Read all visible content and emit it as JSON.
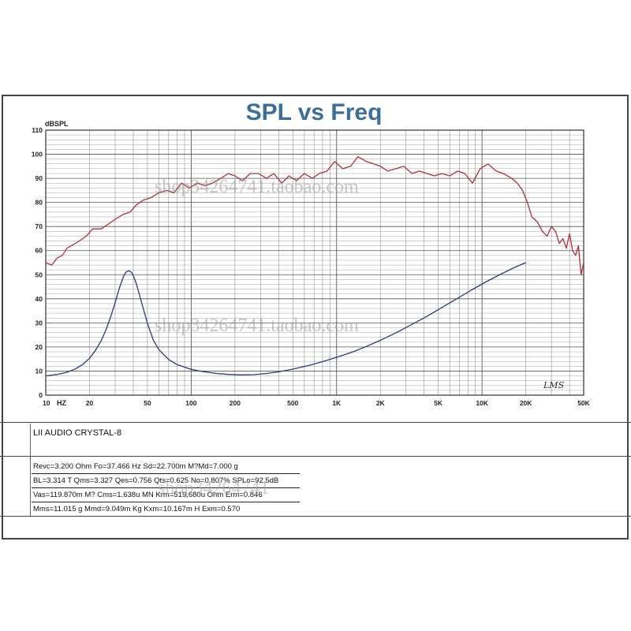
{
  "chart_data": {
    "type": "line",
    "title": "SPL vs Freq",
    "ylabel": "dBSPL",
    "x_scale": "log",
    "xlim": [
      10,
      50000
    ],
    "ylim": [
      0,
      110
    ],
    "grid": true,
    "x_ticks": [
      {
        "value": 10,
        "label": "10"
      },
      {
        "value": 20,
        "label": "20"
      },
      {
        "value": 50,
        "label": "50"
      },
      {
        "value": 100,
        "label": "100"
      },
      {
        "value": 200,
        "label": "200"
      },
      {
        "value": 500,
        "label": "500"
      },
      {
        "value": 1000,
        "label": "1K"
      },
      {
        "value": 2000,
        "label": "2K"
      },
      {
        "value": 5000,
        "label": "5K"
      },
      {
        "value": 10000,
        "label": "10K"
      },
      {
        "value": 20000,
        "label": "20K"
      },
      {
        "value": 50000,
        "label": "50K"
      }
    ],
    "x_unit": "HZ",
    "y_ticks": [
      0,
      10,
      20,
      30,
      40,
      50,
      60,
      70,
      80,
      90,
      100,
      110
    ],
    "series": [
      {
        "color": "#b0303c",
        "x": [
          10,
          11,
          12,
          13,
          14,
          15,
          17,
          19,
          21,
          24,
          27,
          30,
          34,
          38,
          42,
          47,
          53,
          60,
          68,
          76,
          86,
          97,
          110,
          125,
          140,
          160,
          180,
          200,
          225,
          255,
          290,
          330,
          370,
          420,
          470,
          530,
          600,
          680,
          760,
          860,
          970,
          1100,
          1250,
          1400,
          1600,
          1800,
          2000,
          2250,
          2550,
          2900,
          3300,
          3700,
          4200,
          4700,
          5300,
          6000,
          6800,
          7600,
          8600,
          9700,
          11000,
          12500,
          14000,
          16000,
          17500,
          19000,
          20500,
          22000,
          24000,
          26000,
          28000,
          30000,
          32000,
          34000,
          36000,
          38000,
          40000,
          42000,
          44000,
          46000,
          48000,
          50000
        ],
        "y": [
          55,
          54,
          57,
          58,
          61,
          62,
          64,
          66,
          69,
          69,
          71,
          73,
          75,
          76,
          79,
          81,
          82,
          84,
          85,
          84,
          88,
          86,
          88,
          87,
          88,
          90,
          92,
          91,
          89,
          92,
          92,
          90,
          92,
          88,
          91,
          89,
          92,
          90,
          92,
          93,
          97,
          94,
          95,
          99,
          97,
          96,
          95,
          93,
          94,
          95,
          92,
          93,
          92,
          91,
          92,
          91,
          93,
          92,
          88,
          94,
          96,
          93,
          92,
          90,
          88,
          85,
          80,
          74,
          72,
          68,
          66,
          70,
          68,
          63,
          65,
          61,
          67,
          60,
          58,
          62,
          50,
          55
        ]
      },
      {
        "color": "#2a3a7e",
        "x": [
          10,
          12,
          14,
          16,
          18,
          20,
          22,
          24,
          26,
          28,
          30,
          32,
          34,
          35,
          36,
          37.5,
          39,
          40,
          42,
          44,
          47,
          50,
          55,
          60,
          70,
          80,
          100,
          120,
          150,
          180,
          220,
          270,
          330,
          400,
          500,
          650,
          800,
          1000,
          1300,
          1600,
          2000,
          2600,
          3300,
          4200,
          5300,
          6700,
          8500,
          10500,
          13500,
          17000,
          20000
        ],
        "y": [
          8,
          8.6,
          9.5,
          10.9,
          12.8,
          15.3,
          18.6,
          22.5,
          27.2,
          32.6,
          38.4,
          44.2,
          48.8,
          50.4,
          51.3,
          51.6,
          50.9,
          49.6,
          46.2,
          41.9,
          35.7,
          29.8,
          22.8,
          18.9,
          14.8,
          12.7,
          10.7,
          9.8,
          9.0,
          8.6,
          8.4,
          8.5,
          9.0,
          9.7,
          10.8,
          12.4,
          13.9,
          15.7,
          18.0,
          20.2,
          22.8,
          26.1,
          29.4,
          32.8,
          36.4,
          40.0,
          43.7,
          46.8,
          50.3,
          53.2,
          55.0
        ]
      }
    ],
    "annotation": "LMS"
  },
  "watermarks": [
    "shop34264741.taobao.com",
    "shop34264741.taobao.com",
    "shop34264741"
  ],
  "info": {
    "model": "LII AUDIO CRYSTAL-8",
    "params": [
      "Revc=3.200 Ohm  Fo=37.466 Hz  Sd=22.700m M?Md=7.000 g",
      "BL=3.314 T  Qms=3.327  Qes=0.756  Qts=0.625  No=0.807%  SPLo=92.5dB",
      "Vas=119.870m M?  Cms=1.638u MN  Krm=519.680u Ohm  Erm=0.846",
      "Mms=11.015 g  Mmd=9.049m Kg  Kxm=10.167m H  Exm=0.570"
    ]
  }
}
